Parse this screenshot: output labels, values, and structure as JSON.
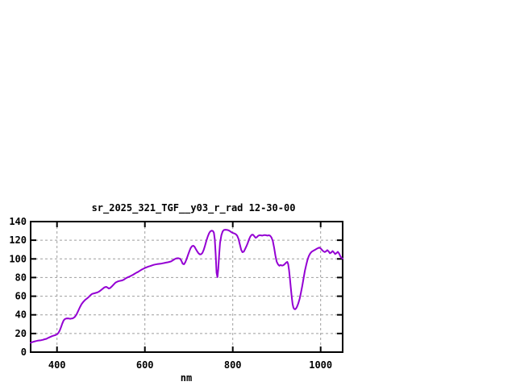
{
  "chart_data": {
    "type": "line",
    "title": "sr_2025_321_TGF__y03_r_rad 12-30-00",
    "xlabel": "nm",
    "ylabel": "",
    "xlim": [
      340,
      1050
    ],
    "ylim": [
      0,
      140
    ],
    "x_ticks": [
      400,
      600,
      800,
      1000
    ],
    "y_ticks": [
      0,
      20,
      40,
      60,
      80,
      100,
      120,
      140
    ],
    "grid": true,
    "legend": "none",
    "line_color": "#9400d3",
    "grid_color": "#9e9e9e",
    "border_color": "#000000",
    "background_color": "#ffffff",
    "series": [
      {
        "name": "sr_2025_321_TGF__y03_r_rad",
        "points": [
          [
            340,
            10
          ],
          [
            344,
            10.8
          ],
          [
            348,
            11.3
          ],
          [
            352,
            11.8
          ],
          [
            356,
            12.3
          ],
          [
            360,
            12.5
          ],
          [
            364,
            12.8
          ],
          [
            368,
            13.2
          ],
          [
            372,
            13.8
          ],
          [
            376,
            14.3
          ],
          [
            380,
            15.3
          ],
          [
            384,
            16.2
          ],
          [
            388,
            17
          ],
          [
            392,
            17.6
          ],
          [
            396,
            18.2
          ],
          [
            400,
            19
          ],
          [
            403,
            20.5
          ],
          [
            406,
            23
          ],
          [
            409,
            26.5
          ],
          [
            412,
            30.5
          ],
          [
            415,
            34
          ],
          [
            418,
            35.5
          ],
          [
            421,
            36
          ],
          [
            424,
            36.2
          ],
          [
            427,
            36
          ],
          [
            430,
            35.8
          ],
          [
            433,
            36
          ],
          [
            436,
            36.2
          ],
          [
            440,
            37.5
          ],
          [
            444,
            40
          ],
          [
            448,
            44
          ],
          [
            452,
            48
          ],
          [
            456,
            51.5
          ],
          [
            460,
            54
          ],
          [
            464,
            56
          ],
          [
            468,
            57.5
          ],
          [
            472,
            59
          ],
          [
            476,
            61
          ],
          [
            480,
            62.5
          ],
          [
            484,
            63
          ],
          [
            488,
            63.5
          ],
          [
            492,
            64
          ],
          [
            496,
            65
          ],
          [
            500,
            66.5
          ],
          [
            504,
            68
          ],
          [
            508,
            69.5
          ],
          [
            512,
            70
          ],
          [
            515,
            69.2
          ],
          [
            518,
            68.3
          ],
          [
            521,
            68.8
          ],
          [
            525,
            70.5
          ],
          [
            529,
            72.5
          ],
          [
            533,
            74.5
          ],
          [
            537,
            75.5
          ],
          [
            541,
            76.2
          ],
          [
            545,
            76.6
          ],
          [
            549,
            77
          ],
          [
            553,
            78
          ],
          [
            557,
            79.3
          ],
          [
            561,
            80.3
          ],
          [
            565,
            81
          ],
          [
            569,
            82
          ],
          [
            573,
            83
          ],
          [
            577,
            84.2
          ],
          [
            581,
            85.3
          ],
          [
            585,
            86.2
          ],
          [
            589,
            87.5
          ],
          [
            593,
            88.6
          ],
          [
            597,
            89.5
          ],
          [
            600,
            90.2
          ],
          [
            604,
            91
          ],
          [
            608,
            91.8
          ],
          [
            612,
            92.3
          ],
          [
            616,
            93
          ],
          [
            620,
            93.6
          ],
          [
            624,
            94
          ],
          [
            628,
            94.4
          ],
          [
            632,
            94.6
          ],
          [
            636,
            94.8
          ],
          [
            640,
            95.2
          ],
          [
            644,
            95.6
          ],
          [
            648,
            96
          ],
          [
            652,
            96.4
          ],
          [
            656,
            96.8
          ],
          [
            660,
            97.4
          ],
          [
            664,
            98.6
          ],
          [
            668,
            99.8
          ],
          [
            672,
            100.6
          ],
          [
            676,
            100.8
          ],
          [
            680,
            100.2
          ],
          [
            683,
            98
          ],
          [
            686,
            94.8
          ],
          [
            689,
            94.2
          ],
          [
            692,
            96.5
          ],
          [
            695,
            100
          ],
          [
            698,
            104
          ],
          [
            701,
            108
          ],
          [
            704,
            111.5
          ],
          [
            707,
            113.5
          ],
          [
            710,
            114.2
          ],
          [
            713,
            113
          ],
          [
            716,
            110.5
          ],
          [
            719,
            108
          ],
          [
            722,
            106
          ],
          [
            725,
            104.8
          ],
          [
            728,
            105
          ],
          [
            731,
            106.5
          ],
          [
            734,
            110
          ],
          [
            737,
            114.5
          ],
          [
            740,
            119.5
          ],
          [
            743,
            124
          ],
          [
            746,
            127.5
          ],
          [
            749,
            129.5
          ],
          [
            752,
            130.3
          ],
          [
            755,
            129.8
          ],
          [
            757,
            128
          ],
          [
            759,
            121
          ],
          [
            761,
            105
          ],
          [
            763,
            85
          ],
          [
            765,
            80.5
          ],
          [
            767,
            89
          ],
          [
            769,
            104
          ],
          [
            771,
            117
          ],
          [
            774,
            125.5
          ],
          [
            777,
            129.5
          ],
          [
            780,
            131
          ],
          [
            783,
            131.3
          ],
          [
            786,
            131.2
          ],
          [
            789,
            130.8
          ],
          [
            792,
            130.2
          ],
          [
            795,
            129.3
          ],
          [
            798,
            128.3
          ],
          [
            801,
            127.6
          ],
          [
            804,
            127.2
          ],
          [
            807,
            126.4
          ],
          [
            810,
            124.8
          ],
          [
            813,
            121.5
          ],
          [
            816,
            115.5
          ],
          [
            819,
            109.8
          ],
          [
            822,
            107.2
          ],
          [
            825,
            107.8
          ],
          [
            828,
            110.5
          ],
          [
            831,
            113.5
          ],
          [
            834,
            117
          ],
          [
            837,
            121
          ],
          [
            840,
            124
          ],
          [
            843,
            125.8
          ],
          [
            846,
            125.9
          ],
          [
            849,
            124.4
          ],
          [
            852,
            122.6
          ],
          [
            855,
            123.4
          ],
          [
            858,
            124.8
          ],
          [
            861,
            125.4
          ],
          [
            864,
            125.2
          ],
          [
            867,
            125
          ],
          [
            870,
            125.4
          ],
          [
            873,
            125.6
          ],
          [
            876,
            125.3
          ],
          [
            879,
            125
          ],
          [
            882,
            125.4
          ],
          [
            885,
            124.8
          ],
          [
            888,
            123
          ],
          [
            891,
            119.5
          ],
          [
            894,
            112
          ],
          [
            897,
            103.5
          ],
          [
            900,
            97
          ],
          [
            903,
            94
          ],
          [
            906,
            92.6
          ],
          [
            909,
            93.4
          ],
          [
            912,
            92.8
          ],
          [
            915,
            93.2
          ],
          [
            918,
            94.4
          ],
          [
            921,
            95.8
          ],
          [
            924,
            96.8
          ],
          [
            926,
            94.5
          ],
          [
            928,
            88
          ],
          [
            930,
            79
          ],
          [
            932,
            69
          ],
          [
            934,
            59.5
          ],
          [
            936,
            51.5
          ],
          [
            938,
            47.5
          ],
          [
            940,
            46.2
          ],
          [
            942,
            46
          ],
          [
            944,
            46.8
          ],
          [
            946,
            48.5
          ],
          [
            949,
            52
          ],
          [
            952,
            57
          ],
          [
            955,
            63.5
          ],
          [
            958,
            71
          ],
          [
            961,
            79
          ],
          [
            964,
            87
          ],
          [
            967,
            93.5
          ],
          [
            970,
            99
          ],
          [
            973,
            103
          ],
          [
            976,
            105.8
          ],
          [
            979,
            107.4
          ],
          [
            982,
            108.4
          ],
          [
            985,
            109.2
          ],
          [
            988,
            110
          ],
          [
            991,
            110.8
          ],
          [
            994,
            111.6
          ],
          [
            997,
            112.2
          ],
          [
            1000,
            111.2
          ],
          [
            1003,
            109.6
          ],
          [
            1006,
            108.2
          ],
          [
            1009,
            107.3
          ],
          [
            1012,
            108
          ],
          [
            1015,
            109.4
          ],
          [
            1018,
            108
          ],
          [
            1021,
            106
          ],
          [
            1024,
            106.8
          ],
          [
            1027,
            108.4
          ],
          [
            1030,
            107
          ],
          [
            1033,
            105.2
          ],
          [
            1036,
            106.2
          ],
          [
            1039,
            107.6
          ],
          [
            1042,
            105.8
          ],
          [
            1045,
            102.5
          ],
          [
            1048,
            100.8
          ],
          [
            1050,
            100.4
          ]
        ]
      }
    ]
  }
}
